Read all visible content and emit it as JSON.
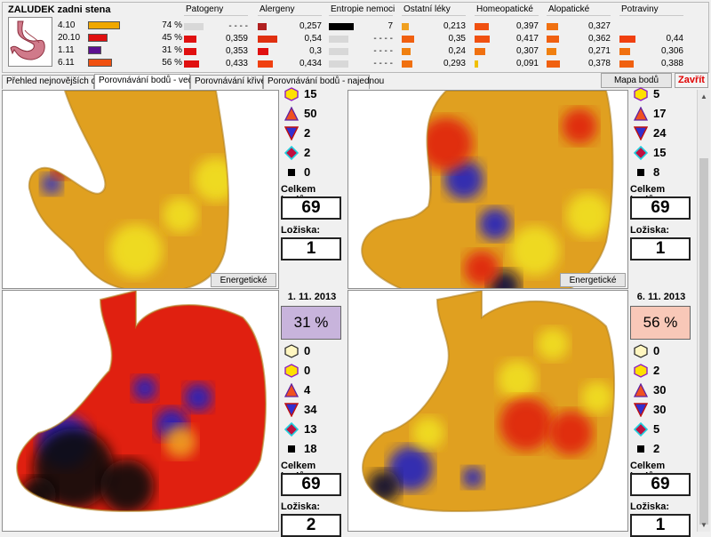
{
  "header": {
    "title": "ZALUDEK zadni stena"
  },
  "measurements": [
    {
      "date": "4.10",
      "color": "#f0a800",
      "pct": "74 %",
      "fill": 0.74
    },
    {
      "date": "20.10",
      "color": "#e01010",
      "pct": "45 %",
      "fill": 0.45
    },
    {
      "date": "1.11",
      "color": "#5c1090",
      "pct": "31 %",
      "fill": 0.31
    },
    {
      "date": "6.11",
      "color": "#f05010",
      "pct": "56 %",
      "fill": 0.56
    }
  ],
  "categories": [
    {
      "label": "Patogeny",
      "rows": [
        {
          "color": "#d8d8d8",
          "value": "- - - -",
          "fill": 0.0
        },
        {
          "color": "#e01010",
          "value": "0,359",
          "fill": 0.36
        },
        {
          "color": "#e01010",
          "value": "0,353",
          "fill": 0.35
        },
        {
          "color": "#e01010",
          "value": "0,433",
          "fill": 0.43
        }
      ]
    },
    {
      "label": "Alergeny",
      "rows": [
        {
          "color": "#b02020",
          "value": "0,257",
          "fill": 0.26
        },
        {
          "color": "#e03010",
          "value": "0,54",
          "fill": 0.54
        },
        {
          "color": "#e01010",
          "value": "0,3",
          "fill": 0.3
        },
        {
          "color": "#f04010",
          "value": "0,434",
          "fill": 0.43
        }
      ]
    },
    {
      "label": "Entropie nemoci",
      "rows": [
        {
          "color": "#000000",
          "value": "7",
          "fill": 0.7
        },
        {
          "color": "#d8d8d8",
          "value": "- - - -",
          "fill": 0.0
        },
        {
          "color": "#d8d8d8",
          "value": "- - - -",
          "fill": 0.0
        },
        {
          "color": "#d8d8d8",
          "value": "- - - -",
          "fill": 0.0
        }
      ]
    },
    {
      "label": "Ostatní léky",
      "rows": [
        {
          "color": "#f0a020",
          "value": "0,213",
          "fill": 0.21
        },
        {
          "color": "#f06010",
          "value": "0,35",
          "fill": 0.35
        },
        {
          "color": "#f08010",
          "value": "0,24",
          "fill": 0.24
        },
        {
          "color": "#f07010",
          "value": "0,293",
          "fill": 0.29
        }
      ]
    },
    {
      "label": "Homeopatické",
      "rows": [
        {
          "color": "#f05010",
          "value": "0,397",
          "fill": 0.4
        },
        {
          "color": "#f05010",
          "value": "0,417",
          "fill": 0.42
        },
        {
          "color": "#f07010",
          "value": "0,307",
          "fill": 0.31
        },
        {
          "color": "#f0c000",
          "value": "0,091",
          "fill": 0.09
        }
      ]
    },
    {
      "label": "Alopatické",
      "rows": [
        {
          "color": "#f07010",
          "value": "0,327",
          "fill": 0.33
        },
        {
          "color": "#f06010",
          "value": "0,362",
          "fill": 0.36
        },
        {
          "color": "#f08010",
          "value": "0,271",
          "fill": 0.27
        },
        {
          "color": "#f06010",
          "value": "0,378",
          "fill": 0.38
        }
      ]
    },
    {
      "label": "Potraviny",
      "rows": [
        {
          "color": "#d8d8d8",
          "value": "",
          "fill": 0.0
        },
        {
          "color": "#f04010",
          "value": "0,44",
          "fill": 0.44
        },
        {
          "color": "#f07010",
          "value": "0,306",
          "fill": 0.31
        },
        {
          "color": "#f06010",
          "value": "0,388",
          "fill": 0.39
        }
      ]
    }
  ],
  "tabs": [
    "Přehled nejnovějších dat",
    "Porovnávání bodů - vedle",
    "Porovnávání křivek",
    "Porovnávání bodů - najednou"
  ],
  "active_tab": 1,
  "buttons": {
    "map": "Mapa bodů",
    "close": "Zavřít",
    "energy": "Energetické body"
  },
  "labels": {
    "total": "Celkem bodů:",
    "foci": "Ložiska:"
  },
  "panels": [
    {
      "date": "",
      "percent": "",
      "symbols": [
        "15",
        "50",
        "2",
        "2",
        "0"
      ],
      "total": "69",
      "foci": "1"
    },
    {
      "date": "",
      "percent": "",
      "symbols": [
        "5",
        "17",
        "24",
        "15",
        "8"
      ],
      "total": "69",
      "foci": "1"
    },
    {
      "date": "1. 11. 2013",
      "percent": "31 %",
      "percent_bg": "#c8b4dc",
      "symbols": [
        "0",
        "0",
        "4",
        "34",
        "13",
        "18"
      ],
      "total": "69",
      "foci": "2"
    },
    {
      "date": "6. 11. 2013",
      "percent": "56 %",
      "percent_bg": "#f8c8b8",
      "symbols": [
        "0",
        "2",
        "30",
        "30",
        "5",
        "2"
      ],
      "total": "69",
      "foci": "1"
    }
  ]
}
